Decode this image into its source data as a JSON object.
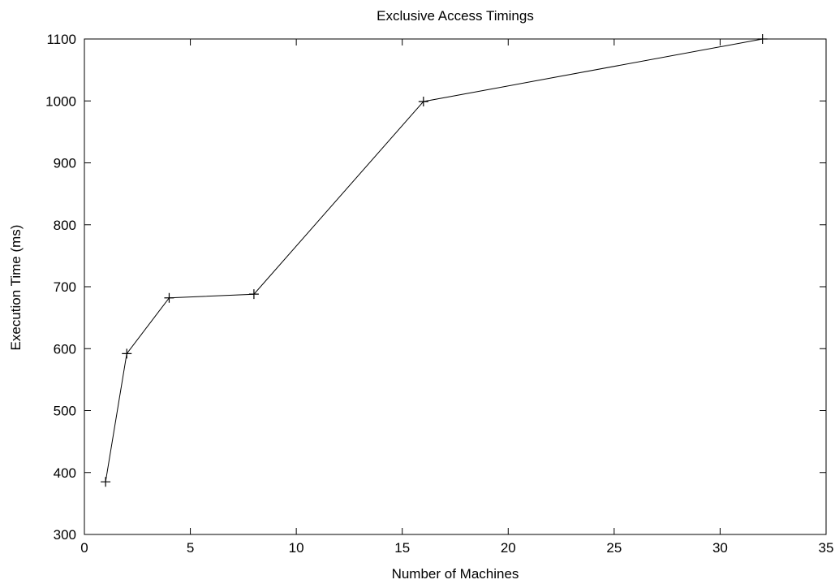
{
  "chart_data": {
    "type": "line",
    "title": "Exclusive Access Timings",
    "xlabel": "Number of Machines",
    "ylabel": "Execution Time (ms)",
    "xlim": [
      0,
      35
    ],
    "ylim": [
      300,
      1100
    ],
    "x_ticks": [
      0,
      5,
      10,
      15,
      20,
      25,
      30,
      35
    ],
    "y_ticks": [
      300,
      400,
      500,
      600,
      700,
      800,
      900,
      1000,
      1100
    ],
    "grid": false,
    "legend": "none",
    "series": [
      {
        "x": [
          1,
          2,
          4,
          8,
          16,
          32
        ],
        "y": [
          385,
          592,
          682,
          688,
          999,
          1100
        ],
        "marker": "plus",
        "color": "#000000"
      }
    ]
  }
}
